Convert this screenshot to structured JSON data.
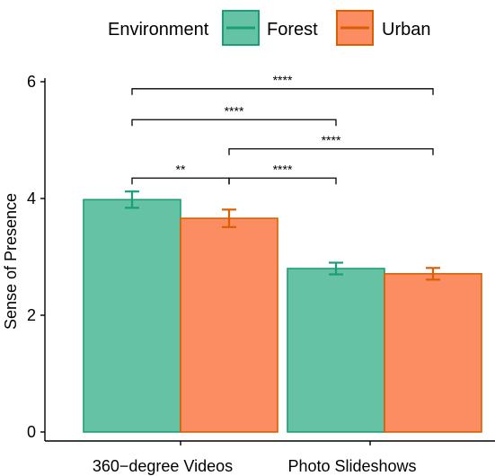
{
  "chart_data": {
    "type": "bar",
    "title": "",
    "xlabel": "",
    "ylabel": "Sense of Presence",
    "ylim": [
      0,
      6
    ],
    "yticks": [
      0,
      2,
      4,
      6
    ],
    "grid": false,
    "legend": {
      "title": "Environment",
      "position": "top"
    },
    "categories": [
      "360−degree Videos",
      "Photo Slideshows"
    ],
    "series": [
      {
        "name": "Forest",
        "values": [
          3.98,
          2.8
        ],
        "error": [
          0.14,
          0.1
        ],
        "fill": "#66c2a5",
        "stroke": "#1b9e77"
      },
      {
        "name": "Urban",
        "values": [
          3.66,
          2.71
        ],
        "error": [
          0.15,
          0.1
        ],
        "fill": "#fc8d62",
        "stroke": "#d95f02"
      }
    ],
    "significance": [
      {
        "from": {
          "category": 0,
          "series": 0
        },
        "to": {
          "category": 1,
          "series": 1
        },
        "label": "****",
        "y": 5.88
      },
      {
        "from": {
          "category": 0,
          "series": 0
        },
        "to": {
          "category": 1,
          "series": 0
        },
        "label": "****",
        "y": 5.35
      },
      {
        "from": {
          "category": 0,
          "series": 1
        },
        "to": {
          "category": 1,
          "series": 1
        },
        "label": "****",
        "y": 4.85
      },
      {
        "from": {
          "category": 0,
          "series": 0
        },
        "to": {
          "category": 0,
          "series": 1
        },
        "label": "**",
        "y": 4.35
      },
      {
        "from": {
          "category": 0,
          "series": 1
        },
        "to": {
          "category": 1,
          "series": 0
        },
        "label": "****",
        "y": 4.35
      }
    ]
  }
}
